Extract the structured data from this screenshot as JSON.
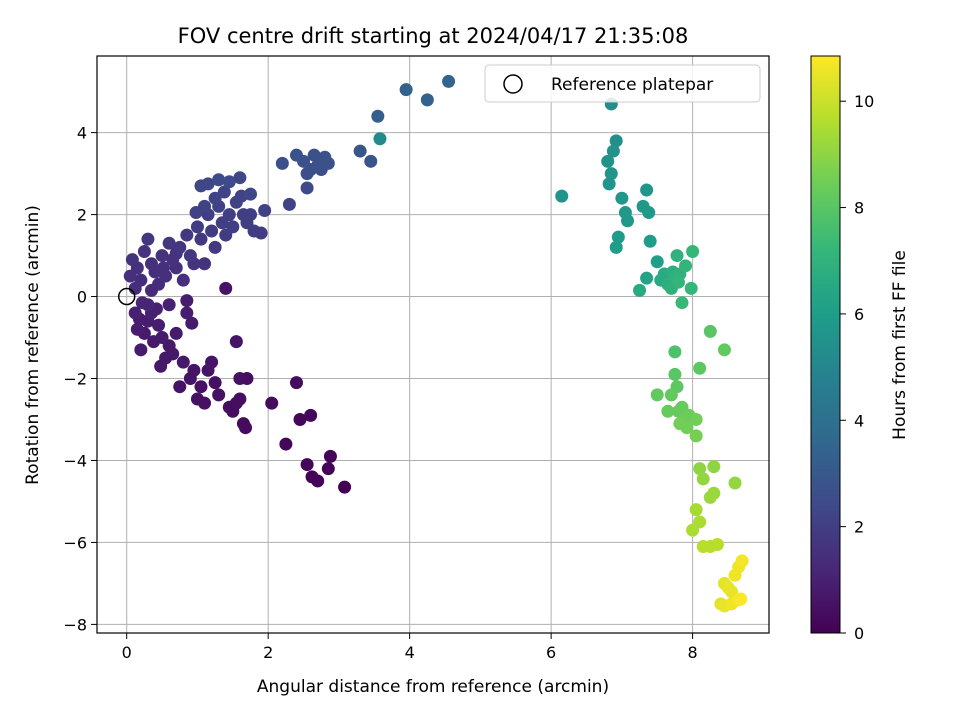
{
  "chart_data": {
    "type": "scatter",
    "title": "FOV centre drift starting at 2024/04/17 21:35:08",
    "xlabel": "Angular distance from reference (arcmin)",
    "ylabel": "Rotation from reference (arcmin)",
    "xlim": [
      -0.42,
      9.08
    ],
    "ylim": [
      -8.21,
      5.87
    ],
    "x_ticks": [
      0,
      2,
      4,
      6,
      8
    ],
    "y_ticks": [
      -8,
      -6,
      -4,
      -2,
      0,
      2,
      4
    ],
    "grid": true,
    "legend": {
      "placement": "upper right",
      "entries": [
        "Reference platepar"
      ]
    },
    "reference_point": {
      "x": 0,
      "y": 0,
      "label": "Reference platepar"
    },
    "colorbar": {
      "label": "Hours from first FF file",
      "range": [
        0,
        10.85
      ],
      "ticks": [
        0,
        2,
        4,
        6,
        8,
        10
      ],
      "colormap": "viridis"
    },
    "points": [
      {
        "x": 0.12,
        "y": -0.4,
        "h": 1.0
      },
      {
        "x": 0.15,
        "y": -0.8,
        "h": 0.9
      },
      {
        "x": 0.2,
        "y": -1.3,
        "h": 0.8
      },
      {
        "x": 0.25,
        "y": -0.9,
        "h": 0.8
      },
      {
        "x": 0.3,
        "y": -0.6,
        "h": 0.9
      },
      {
        "x": 0.35,
        "y": -0.4,
        "h": 1.0
      },
      {
        "x": 0.38,
        "y": -1.1,
        "h": 0.8
      },
      {
        "x": 0.42,
        "y": -0.3,
        "h": 1.0
      },
      {
        "x": 0.45,
        "y": -0.7,
        "h": 0.9
      },
      {
        "x": 0.5,
        "y": -1.0,
        "h": 0.8
      },
      {
        "x": 0.55,
        "y": -1.5,
        "h": 0.7
      },
      {
        "x": 0.6,
        "y": -1.2,
        "h": 0.7
      },
      {
        "x": 0.65,
        "y": -1.4,
        "h": 0.7
      },
      {
        "x": 0.7,
        "y": -0.9,
        "h": 0.8
      },
      {
        "x": 0.75,
        "y": -2.2,
        "h": 0.6
      },
      {
        "x": 0.8,
        "y": -1.6,
        "h": 0.7
      },
      {
        "x": 0.85,
        "y": -0.4,
        "h": 0.9
      },
      {
        "x": 0.9,
        "y": -2.0,
        "h": 0.6
      },
      {
        "x": 0.95,
        "y": -1.8,
        "h": 0.6
      },
      {
        "x": 1.0,
        "y": -2.5,
        "h": 0.5
      },
      {
        "x": 1.05,
        "y": -2.2,
        "h": 0.5
      },
      {
        "x": 1.1,
        "y": -2.6,
        "h": 0.5
      },
      {
        "x": 1.15,
        "y": -1.8,
        "h": 0.6
      },
      {
        "x": 1.2,
        "y": -1.6,
        "h": 0.6
      },
      {
        "x": 1.25,
        "y": -2.1,
        "h": 0.5
      },
      {
        "x": 1.3,
        "y": -2.4,
        "h": 0.5
      },
      {
        "x": 0.85,
        "y": -0.1,
        "h": 0.9
      },
      {
        "x": 0.92,
        "y": -0.65,
        "h": 0.8
      },
      {
        "x": 0.6,
        "y": -0.2,
        "h": 1.0
      },
      {
        "x": 0.3,
        "y": -0.2,
        "h": 1.1
      },
      {
        "x": 0.18,
        "y": -0.55,
        "h": 0.9
      },
      {
        "x": 0.22,
        "y": -0.15,
        "h": 1.1
      },
      {
        "x": 0.48,
        "y": -1.7,
        "h": 0.7
      },
      {
        "x": 1.4,
        "y": 0.2,
        "h": 0.6
      },
      {
        "x": 1.45,
        "y": -2.7,
        "h": 0.4
      },
      {
        "x": 1.5,
        "y": -2.8,
        "h": 0.4
      },
      {
        "x": 1.55,
        "y": -2.6,
        "h": 0.4
      },
      {
        "x": 1.6,
        "y": -2.5,
        "h": 0.4
      },
      {
        "x": 1.65,
        "y": -3.1,
        "h": 0.3
      },
      {
        "x": 1.55,
        "y": -1.1,
        "h": 0.6
      },
      {
        "x": 1.6,
        "y": -2.0,
        "h": 0.5
      },
      {
        "x": 1.68,
        "y": -3.2,
        "h": 0.3
      },
      {
        "x": 1.7,
        "y": -2.0,
        "h": 0.4
      },
      {
        "x": 2.05,
        "y": -2.6,
        "h": 0.3
      },
      {
        "x": 2.25,
        "y": -3.6,
        "h": 0.2
      },
      {
        "x": 2.4,
        "y": -2.1,
        "h": 0.3
      },
      {
        "x": 2.45,
        "y": -3.0,
        "h": 0.2
      },
      {
        "x": 2.55,
        "y": -4.1,
        "h": 0.1
      },
      {
        "x": 2.6,
        "y": -2.9,
        "h": 0.2
      },
      {
        "x": 2.62,
        "y": -4.4,
        "h": 0.1
      },
      {
        "x": 2.7,
        "y": -4.5,
        "h": 0.1
      },
      {
        "x": 2.85,
        "y": -4.2,
        "h": 0.1
      },
      {
        "x": 2.88,
        "y": -3.9,
        "h": 0.1
      },
      {
        "x": 3.08,
        "y": -4.65,
        "h": 0.0
      },
      {
        "x": 0.05,
        "y": 0.5,
        "h": 1.5
      },
      {
        "x": 0.08,
        "y": 0.9,
        "h": 1.6
      },
      {
        "x": 0.12,
        "y": 0.2,
        "h": 1.4
      },
      {
        "x": 0.15,
        "y": 0.7,
        "h": 1.5
      },
      {
        "x": 0.2,
        "y": 0.4,
        "h": 1.4
      },
      {
        "x": 0.25,
        "y": 1.1,
        "h": 1.6
      },
      {
        "x": 0.3,
        "y": 1.4,
        "h": 1.7
      },
      {
        "x": 0.35,
        "y": 0.8,
        "h": 1.5
      },
      {
        "x": 0.4,
        "y": 0.6,
        "h": 1.5
      },
      {
        "x": 0.45,
        "y": 0.3,
        "h": 1.4
      },
      {
        "x": 0.5,
        "y": 1.0,
        "h": 1.6
      },
      {
        "x": 0.55,
        "y": 0.5,
        "h": 1.5
      },
      {
        "x": 0.6,
        "y": 1.3,
        "h": 1.7
      },
      {
        "x": 0.65,
        "y": 0.9,
        "h": 1.6
      },
      {
        "x": 0.7,
        "y": 0.7,
        "h": 1.5
      },
      {
        "x": 0.75,
        "y": 1.2,
        "h": 1.7
      },
      {
        "x": 0.8,
        "y": 0.4,
        "h": 1.5
      },
      {
        "x": 0.85,
        "y": 1.5,
        "h": 1.8
      },
      {
        "x": 0.9,
        "y": 1.0,
        "h": 1.7
      },
      {
        "x": 0.95,
        "y": 0.8,
        "h": 1.6
      },
      {
        "x": 1.0,
        "y": 1.7,
        "h": 1.9
      },
      {
        "x": 1.05,
        "y": 1.4,
        "h": 1.8
      },
      {
        "x": 1.1,
        "y": 0.8,
        "h": 1.6
      },
      {
        "x": 1.15,
        "y": 2.0,
        "h": 2.0
      },
      {
        "x": 1.2,
        "y": 1.6,
        "h": 1.9
      },
      {
        "x": 1.25,
        "y": 1.2,
        "h": 1.8
      },
      {
        "x": 1.3,
        "y": 2.2,
        "h": 2.1
      },
      {
        "x": 1.35,
        "y": 1.8,
        "h": 2.0
      },
      {
        "x": 1.4,
        "y": 1.5,
        "h": 1.9
      },
      {
        "x": 1.45,
        "y": 2.0,
        "h": 2.0
      },
      {
        "x": 1.5,
        "y": 1.7,
        "h": 2.0
      },
      {
        "x": 1.55,
        "y": 2.3,
        "h": 2.1
      },
      {
        "x": 1.6,
        "y": 2.9,
        "h": 2.3
      },
      {
        "x": 1.65,
        "y": 2.0,
        "h": 2.0
      },
      {
        "x": 1.7,
        "y": 1.8,
        "h": 2.0
      },
      {
        "x": 1.75,
        "y": 2.0,
        "h": 2.0
      },
      {
        "x": 1.8,
        "y": 1.6,
        "h": 1.9
      },
      {
        "x": 1.9,
        "y": 1.55,
        "h": 1.9
      },
      {
        "x": 1.95,
        "y": 2.1,
        "h": 2.1
      },
      {
        "x": 1.05,
        "y": 2.7,
        "h": 2.3
      },
      {
        "x": 1.15,
        "y": 2.75,
        "h": 2.3
      },
      {
        "x": 1.3,
        "y": 2.85,
        "h": 2.4
      },
      {
        "x": 1.45,
        "y": 2.8,
        "h": 2.4
      },
      {
        "x": 1.75,
        "y": 2.5,
        "h": 2.3
      },
      {
        "x": 1.25,
        "y": 2.4,
        "h": 2.2
      },
      {
        "x": 1.1,
        "y": 2.2,
        "h": 2.1
      },
      {
        "x": 0.98,
        "y": 2.05,
        "h": 2.1
      },
      {
        "x": 0.7,
        "y": 1.05,
        "h": 1.6
      },
      {
        "x": 0.35,
        "y": 0.15,
        "h": 1.3
      },
      {
        "x": 0.52,
        "y": 0.7,
        "h": 1.5
      },
      {
        "x": 1.62,
        "y": 2.45,
        "h": 2.2
      },
      {
        "x": 1.38,
        "y": 2.55,
        "h": 2.2
      },
      {
        "x": 2.2,
        "y": 3.25,
        "h": 2.6
      },
      {
        "x": 2.3,
        "y": 2.25,
        "h": 2.2
      },
      {
        "x": 2.4,
        "y": 3.45,
        "h": 2.7
      },
      {
        "x": 2.5,
        "y": 3.3,
        "h": 2.7
      },
      {
        "x": 2.55,
        "y": 2.65,
        "h": 2.4
      },
      {
        "x": 2.6,
        "y": 3.1,
        "h": 2.6
      },
      {
        "x": 2.65,
        "y": 3.45,
        "h": 2.7
      },
      {
        "x": 2.7,
        "y": 3.2,
        "h": 2.7
      },
      {
        "x": 2.75,
        "y": 3.1,
        "h": 2.6
      },
      {
        "x": 2.85,
        "y": 3.25,
        "h": 2.7
      },
      {
        "x": 2.55,
        "y": 3.0,
        "h": 2.6
      },
      {
        "x": 2.8,
        "y": 3.4,
        "h": 2.7
      },
      {
        "x": 3.3,
        "y": 3.55,
        "h": 2.9
      },
      {
        "x": 3.45,
        "y": 3.3,
        "h": 2.9
      },
      {
        "x": 3.55,
        "y": 4.4,
        "h": 3.2
      },
      {
        "x": 3.95,
        "y": 5.05,
        "h": 3.4
      },
      {
        "x": 4.25,
        "y": 4.8,
        "h": 3.4
      },
      {
        "x": 4.55,
        "y": 5.25,
        "h": 3.5
      },
      {
        "x": 3.58,
        "y": 3.85,
        "h": 5.2
      },
      {
        "x": 6.15,
        "y": 2.45,
        "h": 5.6
      },
      {
        "x": 6.8,
        "y": 3.3,
        "h": 5.5
      },
      {
        "x": 6.82,
        "y": 2.75,
        "h": 5.6
      },
      {
        "x": 6.85,
        "y": 3.0,
        "h": 5.6
      },
      {
        "x": 6.85,
        "y": 4.7,
        "h": 5.3
      },
      {
        "x": 6.88,
        "y": 3.55,
        "h": 5.5
      },
      {
        "x": 6.92,
        "y": 3.8,
        "h": 5.4
      },
      {
        "x": 6.95,
        "y": 1.45,
        "h": 5.9
      },
      {
        "x": 6.92,
        "y": 1.2,
        "h": 6.0
      },
      {
        "x": 7.0,
        "y": 2.4,
        "h": 5.7
      },
      {
        "x": 7.05,
        "y": 2.05,
        "h": 5.8
      },
      {
        "x": 7.08,
        "y": 1.85,
        "h": 5.8
      },
      {
        "x": 7.25,
        "y": 0.15,
        "h": 6.6
      },
      {
        "x": 7.3,
        "y": 2.2,
        "h": 5.8
      },
      {
        "x": 7.35,
        "y": 2.6,
        "h": 5.7
      },
      {
        "x": 7.38,
        "y": 2.05,
        "h": 5.8
      },
      {
        "x": 7.35,
        "y": 0.45,
        "h": 6.3
      },
      {
        "x": 7.4,
        "y": 1.35,
        "h": 6.0
      },
      {
        "x": 7.5,
        "y": 0.85,
        "h": 6.1
      },
      {
        "x": 7.55,
        "y": 0.4,
        "h": 6.5
      },
      {
        "x": 7.6,
        "y": 0.55,
        "h": 6.6
      },
      {
        "x": 7.65,
        "y": 0.3,
        "h": 6.8
      },
      {
        "x": 7.7,
        "y": 0.2,
        "h": 6.9
      },
      {
        "x": 7.72,
        "y": 0.6,
        "h": 6.8
      },
      {
        "x": 7.75,
        "y": 0.45,
        "h": 6.9
      },
      {
        "x": 7.78,
        "y": 1.0,
        "h": 7.0
      },
      {
        "x": 7.8,
        "y": 0.35,
        "h": 7.1
      },
      {
        "x": 7.82,
        "y": 0.55,
        "h": 7.0
      },
      {
        "x": 7.85,
        "y": -0.15,
        "h": 7.3
      },
      {
        "x": 7.9,
        "y": 0.75,
        "h": 7.1
      },
      {
        "x": 7.98,
        "y": 0.2,
        "h": 7.2
      },
      {
        "x": 8.0,
        "y": 1.1,
        "h": 7.2
      },
      {
        "x": 7.75,
        "y": -1.35,
        "h": 7.8
      },
      {
        "x": 7.7,
        "y": -2.4,
        "h": 8.2
      },
      {
        "x": 7.75,
        "y": -1.9,
        "h": 8.0
      },
      {
        "x": 7.78,
        "y": -2.2,
        "h": 8.1
      },
      {
        "x": 7.8,
        "y": -2.8,
        "h": 8.3
      },
      {
        "x": 7.82,
        "y": -3.1,
        "h": 8.5
      },
      {
        "x": 7.85,
        "y": -2.7,
        "h": 8.3
      },
      {
        "x": 7.88,
        "y": -3.0,
        "h": 8.4
      },
      {
        "x": 7.92,
        "y": -3.2,
        "h": 8.5
      },
      {
        "x": 7.95,
        "y": -2.9,
        "h": 8.4
      },
      {
        "x": 8.05,
        "y": -3.0,
        "h": 8.5
      },
      {
        "x": 8.05,
        "y": -3.4,
        "h": 8.6
      },
      {
        "x": 8.1,
        "y": -1.75,
        "h": 8.1
      },
      {
        "x": 7.65,
        "y": -2.8,
        "h": 8.3
      },
      {
        "x": 7.5,
        "y": -2.4,
        "h": 8.2
      },
      {
        "x": 8.25,
        "y": -0.85,
        "h": 8.0
      },
      {
        "x": 8.45,
        "y": -1.3,
        "h": 8.2
      },
      {
        "x": 8.1,
        "y": -4.2,
        "h": 9.0
      },
      {
        "x": 8.15,
        "y": -4.45,
        "h": 9.1
      },
      {
        "x": 8.25,
        "y": -4.9,
        "h": 9.2
      },
      {
        "x": 8.3,
        "y": -4.15,
        "h": 9.0
      },
      {
        "x": 8.3,
        "y": -4.8,
        "h": 9.2
      },
      {
        "x": 8.6,
        "y": -4.55,
        "h": 9.1
      },
      {
        "x": 8.05,
        "y": -5.2,
        "h": 9.4
      },
      {
        "x": 8.0,
        "y": -5.7,
        "h": 9.5
      },
      {
        "x": 8.1,
        "y": -5.5,
        "h": 9.5
      },
      {
        "x": 8.15,
        "y": -6.1,
        "h": 9.7
      },
      {
        "x": 8.25,
        "y": -6.1,
        "h": 9.7
      },
      {
        "x": 8.35,
        "y": -6.05,
        "h": 9.7
      },
      {
        "x": 8.4,
        "y": -7.5,
        "h": 10.4
      },
      {
        "x": 8.45,
        "y": -7.55,
        "h": 10.5
      },
      {
        "x": 8.45,
        "y": -7.0,
        "h": 10.4
      },
      {
        "x": 8.5,
        "y": -7.1,
        "h": 10.5
      },
      {
        "x": 8.55,
        "y": -7.2,
        "h": 10.5
      },
      {
        "x": 8.6,
        "y": -6.8,
        "h": 10.6
      },
      {
        "x": 8.65,
        "y": -7.4,
        "h": 10.7
      },
      {
        "x": 8.65,
        "y": -6.6,
        "h": 10.6
      },
      {
        "x": 8.7,
        "y": -6.45,
        "h": 10.7
      },
      {
        "x": 8.55,
        "y": -7.5,
        "h": 10.6
      },
      {
        "x": 8.68,
        "y": -7.38,
        "h": 10.8
      }
    ]
  }
}
